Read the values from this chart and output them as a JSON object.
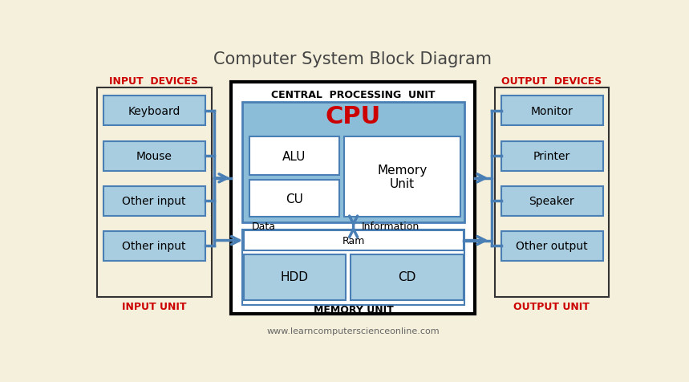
{
  "title": "Computer System Block Diagram",
  "bg_color": "#f5f0dc",
  "box_fill_light": "#a8cce0",
  "box_fill_cpu_bg": "#8bbdd9",
  "border_color": "#4a7fb5",
  "arrow_color": "#4a7fb5",
  "red_text": "#cc0000",
  "input_devices": [
    "Keyboard",
    "Mouse",
    "Other input",
    "Other input"
  ],
  "output_devices": [
    "Monitor",
    "Printer",
    "Speaker",
    "Other output"
  ],
  "cpu_label": "CPU",
  "alu_label": "ALU",
  "cu_label": "CU",
  "memory_unit_label": "Memory\nUnit",
  "ram_label": "Ram",
  "hdd_label": "HDD",
  "cd_label": "CD",
  "input_devices_label": "INPUT  DEVICES",
  "input_unit_label": "INPUT UNIT",
  "output_devices_label": "OUTPUT  DEVICES",
  "output_unit_label": "OUTPUT UNIT",
  "cpu_section_label": "CENTRAL  PROCESSING  UNIT",
  "memory_unit_section_label": "MEMORY UNIT",
  "data_label": "Data",
  "information_label": "Information",
  "footer": "www.learncomputerscienceonline.com"
}
